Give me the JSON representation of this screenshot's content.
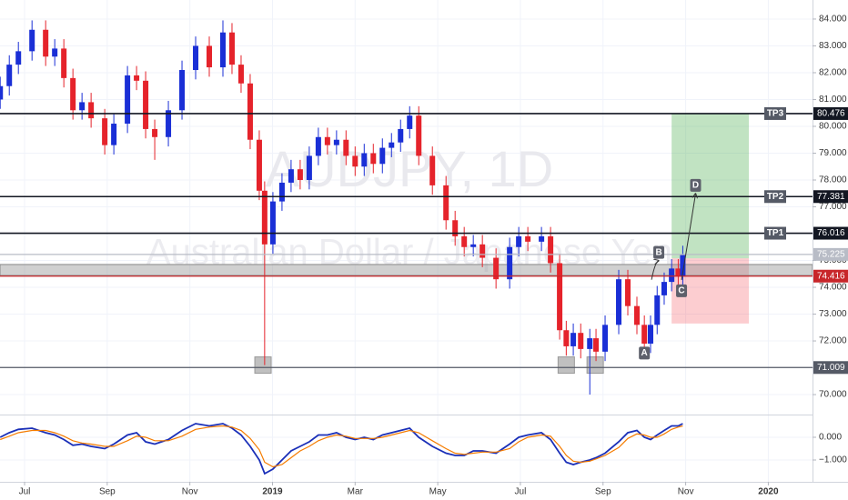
{
  "chart_data": {
    "type": "candlestick",
    "watermark": {
      "symbol": "AUDJPY, 1D",
      "description": "Australian Dollar / Japanese Yen"
    },
    "up_color": "#1a2fd6",
    "down_color": "#e5232b",
    "grid": true,
    "xlim": [
      5.405,
      25.07
    ],
    "xticks": [
      {
        "value": 6,
        "label": "Jul"
      },
      {
        "value": 8,
        "label": "Sep"
      },
      {
        "value": 10,
        "label": "Nov"
      },
      {
        "value": 12,
        "label": "2019"
      },
      {
        "value": 14,
        "label": "Mar"
      },
      {
        "value": 16,
        "label": "May"
      },
      {
        "value": 18,
        "label": "Jul"
      },
      {
        "value": 20,
        "label": "Sep"
      },
      {
        "value": 22,
        "label": "Nov"
      },
      {
        "value": 24,
        "label": "2020"
      }
    ],
    "ylim": [
      69.29,
      84.71
    ],
    "yticks": [
      {
        "value": 70,
        "label": "70.000"
      },
      {
        "value": 71,
        "label": "71.000"
      },
      {
        "value": 72,
        "label": "72.000"
      },
      {
        "value": 73,
        "label": "73.000"
      },
      {
        "value": 74,
        "label": "74.000"
      },
      {
        "value": 75,
        "label": "75.000"
      },
      {
        "value": 76,
        "label": "76.000"
      },
      {
        "value": 77,
        "label": "77.000"
      },
      {
        "value": 78,
        "label": "78.000"
      },
      {
        "value": 79,
        "label": "79.000"
      },
      {
        "value": 80,
        "label": "80.000"
      },
      {
        "value": 81,
        "label": "81.000"
      },
      {
        "value": 82,
        "label": "82.000"
      },
      {
        "value": 83,
        "label": "83.000"
      },
      {
        "value": 84,
        "label": "84.000"
      }
    ],
    "x": [
      5.41,
      5.63,
      5.85,
      6.18,
      6.51,
      6.73,
      6.95,
      7.17,
      7.39,
      7.61,
      7.94,
      8.16,
      8.49,
      8.71,
      8.93,
      9.15,
      9.48,
      9.81,
      10.14,
      10.47,
      10.8,
      11.02,
      11.24,
      11.46,
      11.68,
      11.81,
      12.01,
      12.23,
      12.45,
      12.67,
      12.89,
      13.11,
      13.33,
      13.55,
      13.78,
      14.0,
      14.22,
      14.44,
      14.66,
      14.88,
      15.1,
      15.32,
      15.54,
      15.87,
      16.2,
      16.42,
      16.64,
      16.86,
      17.08,
      17.41,
      17.74,
      17.96,
      18.18,
      18.51,
      18.73,
      18.95,
      19.11,
      19.28,
      19.46,
      19.68,
      19.83,
      20.05,
      20.38,
      20.6,
      20.82,
      21.0,
      21.15,
      21.31,
      21.48,
      21.66,
      21.82,
      21.93
    ],
    "open": [
      81.0,
      81.5,
      82.3,
      82.8,
      83.6,
      82.6,
      82.9,
      81.8,
      80.6,
      80.9,
      80.3,
      79.3,
      80.1,
      81.9,
      81.7,
      79.9,
      79.6,
      80.6,
      82.1,
      83.0,
      82.2,
      83.5,
      82.3,
      81.6,
      79.5,
      77.6,
      75.6,
      77.2,
      77.9,
      78.4,
      78.0,
      78.9,
      79.6,
      79.3,
      79.5,
      78.9,
      78.5,
      79.0,
      78.6,
      79.2,
      79.4,
      79.9,
      80.4,
      78.9,
      77.8,
      76.5,
      75.9,
      75.5,
      75.6,
      75.1,
      74.3,
      75.5,
      75.9,
      75.7,
      75.9,
      74.9,
      72.4,
      71.8,
      72.3,
      71.7,
      72.1,
      71.6,
      72.6,
      74.3,
      73.3,
      72.6,
      71.9,
      72.6,
      73.7,
      74.2,
      74.7,
      74.4
    ],
    "high": [
      81.85,
      82.65,
      83.15,
      83.95,
      83.95,
      83.25,
      83.25,
      82.15,
      81.25,
      81.25,
      80.65,
      80.45,
      82.25,
      82.25,
      82.05,
      80.25,
      80.95,
      82.45,
      83.35,
      83.35,
      83.95,
      83.85,
      82.65,
      81.95,
      79.85,
      77.95,
      77.55,
      78.25,
      78.75,
      78.75,
      79.25,
      79.95,
      79.95,
      79.85,
      79.85,
      79.25,
      79.35,
      79.35,
      79.55,
      79.75,
      80.25,
      80.75,
      80.75,
      79.25,
      78.15,
      76.85,
      76.25,
      75.95,
      75.95,
      75.45,
      75.85,
      76.25,
      76.25,
      76.25,
      76.25,
      75.25,
      72.75,
      72.65,
      72.65,
      72.45,
      72.45,
      72.95,
      74.65,
      74.65,
      73.65,
      72.95,
      72.95,
      74.05,
      74.55,
      75.05,
      75.05,
      75.55
    ],
    "low": [
      80.65,
      81.15,
      81.95,
      82.45,
      82.25,
      82.25,
      81.45,
      80.25,
      80.25,
      79.95,
      78.95,
      78.95,
      79.75,
      81.35,
      79.55,
      78.75,
      79.25,
      80.25,
      81.75,
      81.85,
      81.85,
      81.95,
      81.25,
      79.15,
      77.25,
      71.1,
      75.25,
      76.85,
      77.55,
      77.65,
      77.65,
      78.55,
      78.95,
      78.95,
      78.55,
      78.15,
      78.15,
      78.25,
      78.25,
      78.85,
      79.05,
      79.55,
      78.55,
      77.45,
      76.15,
      75.55,
      75.15,
      75.15,
      74.75,
      73.95,
      73.95,
      75.15,
      75.35,
      75.35,
      74.55,
      72.05,
      71.45,
      71.45,
      71.35,
      70.0,
      71.25,
      71.25,
      72.25,
      72.95,
      72.25,
      71.55,
      71.55,
      72.25,
      73.35,
      73.85,
      74.05,
      74.05
    ],
    "close": [
      81.5,
      82.3,
      82.8,
      83.6,
      82.6,
      82.9,
      81.8,
      80.6,
      80.9,
      80.3,
      79.3,
      80.1,
      81.9,
      81.7,
      79.9,
      79.6,
      80.6,
      82.1,
      83.0,
      82.2,
      83.5,
      82.3,
      81.6,
      79.5,
      77.6,
      75.6,
      77.2,
      77.9,
      78.4,
      78.0,
      78.9,
      79.6,
      79.3,
      79.5,
      78.9,
      78.5,
      79.0,
      78.6,
      79.2,
      79.4,
      79.9,
      80.4,
      78.9,
      77.8,
      76.5,
      75.9,
      75.5,
      75.6,
      75.1,
      74.3,
      75.5,
      75.9,
      75.7,
      75.9,
      74.9,
      72.4,
      71.8,
      72.3,
      71.7,
      72.1,
      71.6,
      72.6,
      74.3,
      73.3,
      72.6,
      71.9,
      72.6,
      73.7,
      74.2,
      74.7,
      74.4,
      75.2
    ],
    "levels": [
      {
        "name": "TP3",
        "value": 80.476,
        "color": "#131722"
      },
      {
        "name": "TP2",
        "value": 77.381,
        "color": "#131722"
      },
      {
        "name": "TP1",
        "value": 76.016,
        "color": "#131722"
      },
      {
        "value": 75.225,
        "color": "#b8bcc6"
      },
      {
        "value": 74.416,
        "color": "#c8262a"
      },
      {
        "value": 71.009,
        "color": "#555a66"
      }
    ],
    "zone": [
      74.44,
      74.85
    ],
    "position": {
      "x_start": 21.66,
      "x_end": 23.53,
      "entry": 75.08,
      "target": 80.476,
      "stop": 72.65
    },
    "markers": [
      {
        "x": 11.77,
        "y": 71.1
      },
      {
        "x": 19.11,
        "y": 71.1
      },
      {
        "x": 19.81,
        "y": 71.1
      }
    ],
    "annotations": [
      {
        "label": "A",
        "x": 21.0,
        "y": 71.55
      },
      {
        "label": "B",
        "x": 21.35,
        "y": 75.3
      },
      {
        "label": "C",
        "x": 21.9,
        "y": 73.87
      },
      {
        "label": "D",
        "x": 22.24,
        "y": 77.8
      }
    ],
    "oscillator": {
      "ylim": [
        -1.96,
        0.92
      ],
      "yticks": [
        {
          "value": 0,
          "label": "0.000"
        },
        {
          "value": -1,
          "label": "−1.000"
        }
      ],
      "series": [
        {
          "color": "#1a2fb8",
          "values": [
            0.0,
            0.2,
            0.35,
            0.4,
            0.2,
            0.1,
            -0.1,
            -0.35,
            -0.3,
            -0.4,
            -0.5,
            -0.3,
            0.1,
            0.2,
            -0.2,
            -0.3,
            -0.1,
            0.3,
            0.6,
            0.5,
            0.6,
            0.4,
            0.1,
            -0.4,
            -1.0,
            -1.6,
            -1.4,
            -1.0,
            -0.6,
            -0.4,
            -0.2,
            0.1,
            0.1,
            0.2,
            0.0,
            -0.1,
            0.0,
            -0.1,
            0.1,
            0.2,
            0.3,
            0.4,
            0.0,
            -0.4,
            -0.7,
            -0.8,
            -0.8,
            -0.6,
            -0.6,
            -0.7,
            -0.3,
            0.0,
            0.1,
            0.2,
            -0.1,
            -0.7,
            -1.1,
            -1.2,
            -1.1,
            -1.0,
            -0.9,
            -0.7,
            -0.2,
            0.2,
            0.3,
            0.0,
            -0.1,
            0.1,
            0.3,
            0.5,
            0.5,
            0.6
          ]
        },
        {
          "color": "#f57c00",
          "values": [
            -0.1,
            0.05,
            0.2,
            0.3,
            0.3,
            0.2,
            0.05,
            -0.15,
            -0.25,
            -0.3,
            -0.4,
            -0.4,
            -0.15,
            0.05,
            0.0,
            -0.15,
            -0.15,
            0.05,
            0.35,
            0.45,
            0.5,
            0.45,
            0.3,
            -0.05,
            -0.55,
            -1.1,
            -1.3,
            -1.2,
            -0.9,
            -0.6,
            -0.4,
            -0.15,
            0.0,
            0.1,
            0.05,
            -0.05,
            -0.05,
            -0.05,
            0.0,
            0.1,
            0.2,
            0.3,
            0.2,
            -0.15,
            -0.5,
            -0.7,
            -0.75,
            -0.7,
            -0.65,
            -0.65,
            -0.5,
            -0.2,
            0.0,
            0.1,
            0.05,
            -0.4,
            -0.8,
            -1.05,
            -1.1,
            -1.05,
            -0.95,
            -0.8,
            -0.45,
            -0.05,
            0.15,
            0.1,
            0.0,
            0.0,
            0.15,
            0.35,
            0.45,
            0.5
          ]
        }
      ]
    }
  }
}
